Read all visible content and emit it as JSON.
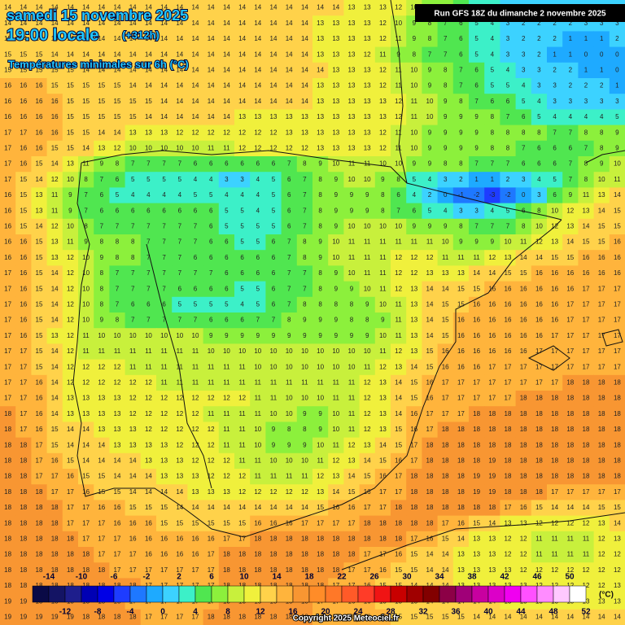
{
  "header": {
    "date": "samedi 15 novembre 2025",
    "time": "19:00 locale",
    "lead": "(+312h)",
    "subtitle": "Températures minimales sur 6h (°C)",
    "run": "Run GFS 18Z du dimanche 2 novembre 2025",
    "copyright": "Copyright 2025 Meteociel.fr"
  },
  "scale": {
    "unit": "(°C)",
    "values": [
      -14,
      -12,
      -10,
      -8,
      -6,
      -4,
      -2,
      0,
      2,
      4,
      6,
      8,
      10,
      12,
      14,
      16,
      18,
      20,
      22,
      24,
      26,
      28,
      30,
      32,
      34,
      36,
      38,
      40,
      42,
      44,
      46,
      48,
      50,
      52
    ],
    "colors": [
      "#0a0a46",
      "#141464",
      "#1e1e8c",
      "#0000b4",
      "#0000e6",
      "#1e3cff",
      "#1e78ff",
      "#1eaaff",
      "#3cd2ff",
      "#3cf0c8",
      "#50e650",
      "#8cf03c",
      "#c8f03c",
      "#f0f03c",
      "#ffd24a",
      "#ffb43c",
      "#f89632",
      "#ff8c28",
      "#ff7828",
      "#ff5a28",
      "#ff3c28",
      "#f01414",
      "#c80000",
      "#a00000",
      "#820000",
      "#8c0046",
      "#a00078",
      "#c800a0",
      "#dc00c8",
      "#f000f0",
      "#ff50ff",
      "#ff8cff",
      "#ffc8ff",
      "#ffffff"
    ]
  },
  "grid": [
    [
      14,
      14,
      14,
      14,
      14,
      14,
      14,
      14,
      14,
      14,
      14,
      14,
      14,
      14,
      14,
      14,
      14,
      14,
      14,
      14,
      14,
      14,
      13,
      13,
      13,
      12,
      10,
      9,
      8,
      7,
      5,
      4,
      3,
      2,
      2,
      2,
      2,
      3,
      3,
      3
    ],
    [
      14,
      14,
      14,
      14,
      14,
      14,
      14,
      14,
      14,
      14,
      14,
      14,
      14,
      14,
      14,
      14,
      14,
      14,
      14,
      14,
      13,
      13,
      13,
      13,
      12,
      10,
      9,
      8,
      7,
      6,
      5,
      4,
      3,
      2,
      2,
      2,
      2,
      3,
      3,
      3
    ],
    [
      15,
      14,
      14,
      14,
      14,
      14,
      14,
      14,
      14,
      14,
      14,
      14,
      14,
      14,
      14,
      14,
      14,
      14,
      14,
      14,
      13,
      13,
      13,
      13,
      12,
      11,
      9,
      8,
      7,
      6,
      5,
      4,
      3,
      2,
      2,
      2,
      1,
      1,
      1,
      2
    ],
    [
      15,
      15,
      15,
      14,
      14,
      14,
      14,
      14,
      14,
      14,
      14,
      14,
      14,
      14,
      14,
      14,
      14,
      14,
      14,
      14,
      13,
      13,
      13,
      12,
      11,
      9,
      8,
      7,
      7,
      6,
      5,
      4,
      3,
      3,
      2,
      1,
      1,
      0,
      0,
      0
    ],
    [
      15,
      15,
      15,
      15,
      15,
      14,
      14,
      14,
      14,
      14,
      14,
      14,
      14,
      14,
      14,
      14,
      14,
      14,
      14,
      14,
      14,
      13,
      13,
      13,
      12,
      11,
      10,
      9,
      8,
      7,
      6,
      5,
      4,
      3,
      3,
      2,
      2,
      1,
      1,
      0
    ],
    [
      16,
      16,
      16,
      15,
      15,
      15,
      15,
      15,
      14,
      14,
      14,
      14,
      14,
      14,
      14,
      14,
      14,
      14,
      14,
      14,
      13,
      13,
      13,
      13,
      12,
      11,
      10,
      9,
      8,
      7,
      6,
      5,
      5,
      4,
      3,
      3,
      2,
      2,
      2,
      1
    ],
    [
      16,
      16,
      16,
      16,
      15,
      15,
      15,
      15,
      15,
      15,
      14,
      14,
      14,
      14,
      14,
      14,
      14,
      14,
      14,
      14,
      13,
      13,
      13,
      13,
      13,
      12,
      11,
      10,
      9,
      8,
      7,
      6,
      6,
      5,
      4,
      3,
      3,
      3,
      3,
      3
    ],
    [
      16,
      16,
      16,
      16,
      15,
      15,
      15,
      15,
      15,
      14,
      14,
      14,
      14,
      14,
      14,
      13,
      13,
      13,
      13,
      13,
      13,
      13,
      13,
      13,
      13,
      12,
      11,
      10,
      9,
      9,
      9,
      8,
      7,
      6,
      5,
      4,
      4,
      4,
      4,
      5
    ],
    [
      17,
      17,
      16,
      16,
      15,
      15,
      14,
      14,
      13,
      13,
      13,
      12,
      12,
      12,
      12,
      12,
      12,
      12,
      13,
      13,
      13,
      13,
      13,
      13,
      12,
      11,
      10,
      9,
      9,
      9,
      9,
      8,
      8,
      8,
      8,
      7,
      7,
      8,
      8,
      9
    ],
    [
      17,
      16,
      16,
      15,
      15,
      14,
      13,
      12,
      10,
      10,
      10,
      10,
      10,
      11,
      11,
      12,
      12,
      12,
      12,
      12,
      13,
      13,
      13,
      13,
      12,
      11,
      10,
      9,
      9,
      9,
      9,
      8,
      8,
      7,
      6,
      6,
      6,
      7,
      8,
      9
    ],
    [
      17,
      16,
      15,
      14,
      13,
      11,
      9,
      8,
      7,
      7,
      7,
      7,
      6,
      6,
      6,
      6,
      6,
      6,
      7,
      8,
      9,
      10,
      11,
      11,
      10,
      10,
      9,
      9,
      8,
      8,
      7,
      7,
      7,
      6,
      6,
      6,
      7,
      8,
      9,
      10
    ],
    [
      17,
      15,
      14,
      12,
      10,
      8,
      7,
      6,
      5,
      5,
      5,
      5,
      4,
      4,
      3,
      3,
      4,
      5,
      6,
      7,
      8,
      9,
      10,
      10,
      9,
      8,
      5,
      4,
      3,
      2,
      1,
      1,
      2,
      3,
      4,
      5,
      7,
      8,
      10,
      11
    ],
    [
      16,
      15,
      13,
      11,
      9,
      7,
      6,
      5,
      4,
      4,
      4,
      4,
      5,
      5,
      4,
      4,
      4,
      5,
      6,
      7,
      8,
      9,
      9,
      9,
      8,
      6,
      4,
      2,
      0,
      -1,
      -2,
      -3,
      -2,
      0,
      3,
      6,
      9,
      11,
      13,
      14
    ],
    [
      16,
      15,
      13,
      11,
      9,
      7,
      6,
      6,
      6,
      6,
      6,
      6,
      6,
      6,
      5,
      5,
      4,
      5,
      6,
      7,
      8,
      9,
      9,
      9,
      8,
      7,
      6,
      5,
      4,
      3,
      3,
      4,
      5,
      6,
      8,
      10,
      12,
      13,
      14,
      15
    ],
    [
      16,
      15,
      14,
      12,
      10,
      8,
      7,
      7,
      7,
      7,
      7,
      7,
      7,
      6,
      5,
      5,
      5,
      5,
      6,
      7,
      8,
      9,
      10,
      10,
      10,
      10,
      9,
      9,
      9,
      8,
      7,
      7,
      7,
      8,
      10,
      12,
      13,
      14,
      15,
      15
    ],
    [
      16,
      16,
      15,
      13,
      11,
      9,
      8,
      8,
      8,
      7,
      7,
      7,
      7,
      6,
      6,
      5,
      5,
      6,
      7,
      8,
      9,
      10,
      11,
      11,
      11,
      11,
      11,
      11,
      10,
      9,
      9,
      9,
      10,
      11,
      12,
      13,
      14,
      15,
      15,
      16
    ],
    [
      16,
      16,
      15,
      13,
      12,
      10,
      9,
      8,
      8,
      7,
      7,
      7,
      6,
      6,
      6,
      6,
      6,
      6,
      7,
      8,
      9,
      10,
      11,
      11,
      11,
      12,
      12,
      12,
      11,
      11,
      11,
      12,
      13,
      14,
      14,
      15,
      15,
      16,
      16,
      16
    ],
    [
      17,
      16,
      15,
      14,
      12,
      10,
      8,
      7,
      7,
      7,
      7,
      7,
      7,
      7,
      6,
      6,
      6,
      6,
      7,
      7,
      8,
      9,
      10,
      11,
      11,
      12,
      12,
      13,
      13,
      13,
      14,
      14,
      15,
      15,
      16,
      16,
      16,
      16,
      16,
      16
    ],
    [
      17,
      16,
      15,
      14,
      12,
      10,
      8,
      7,
      7,
      7,
      7,
      6,
      6,
      6,
      6,
      5,
      5,
      6,
      7,
      7,
      8,
      9,
      9,
      10,
      11,
      12,
      13,
      14,
      14,
      15,
      15,
      16,
      16,
      16,
      16,
      16,
      16,
      17,
      17,
      17
    ],
    [
      17,
      16,
      15,
      14,
      12,
      10,
      8,
      7,
      6,
      6,
      6,
      5,
      5,
      5,
      5,
      4,
      5,
      6,
      7,
      8,
      8,
      8,
      8,
      9,
      10,
      11,
      13,
      14,
      15,
      15,
      16,
      16,
      16,
      16,
      16,
      16,
      17,
      17,
      17,
      17
    ],
    [
      17,
      16,
      15,
      14,
      12,
      10,
      9,
      8,
      7,
      7,
      7,
      7,
      7,
      6,
      6,
      6,
      7,
      7,
      8,
      9,
      9,
      9,
      8,
      8,
      9,
      11,
      13,
      14,
      15,
      16,
      16,
      16,
      16,
      16,
      16,
      16,
      17,
      17,
      17,
      17
    ],
    [
      17,
      16,
      15,
      13,
      12,
      11,
      10,
      10,
      10,
      10,
      10,
      10,
      10,
      9,
      9,
      9,
      9,
      9,
      9,
      9,
      9,
      9,
      9,
      9,
      10,
      11,
      13,
      14,
      15,
      16,
      16,
      16,
      16,
      16,
      16,
      17,
      17,
      17,
      17,
      17
    ],
    [
      17,
      17,
      15,
      14,
      12,
      11,
      11,
      11,
      11,
      11,
      11,
      11,
      11,
      10,
      10,
      10,
      10,
      10,
      10,
      10,
      10,
      10,
      10,
      10,
      11,
      12,
      13,
      15,
      16,
      16,
      16,
      16,
      16,
      16,
      17,
      17,
      17,
      17,
      17,
      17
    ],
    [
      17,
      17,
      15,
      14,
      12,
      12,
      12,
      12,
      11,
      11,
      11,
      11,
      11,
      11,
      11,
      11,
      10,
      10,
      10,
      10,
      10,
      10,
      10,
      11,
      12,
      13,
      14,
      15,
      16,
      16,
      16,
      17,
      17,
      17,
      17,
      17,
      17,
      17,
      17,
      17
    ],
    [
      17,
      17,
      16,
      14,
      12,
      12,
      12,
      12,
      12,
      12,
      11,
      11,
      11,
      11,
      11,
      11,
      11,
      11,
      11,
      11,
      11,
      11,
      11,
      12,
      13,
      14,
      15,
      16,
      17,
      17,
      17,
      17,
      17,
      17,
      17,
      17,
      18,
      18,
      18,
      18
    ],
    [
      17,
      17,
      16,
      14,
      13,
      13,
      13,
      13,
      12,
      12,
      12,
      12,
      12,
      12,
      12,
      12,
      11,
      11,
      10,
      10,
      10,
      11,
      11,
      12,
      13,
      14,
      15,
      16,
      17,
      17,
      17,
      17,
      17,
      18,
      18,
      18,
      18,
      18,
      18,
      18
    ],
    [
      18,
      17,
      16,
      14,
      13,
      13,
      13,
      13,
      12,
      12,
      12,
      12,
      12,
      11,
      11,
      11,
      11,
      10,
      10,
      9,
      9,
      10,
      11,
      12,
      13,
      14,
      16,
      17,
      17,
      17,
      18,
      18,
      18,
      18,
      18,
      18,
      18,
      18,
      18,
      18
    ],
    [
      18,
      17,
      16,
      15,
      14,
      14,
      13,
      13,
      13,
      12,
      12,
      12,
      12,
      12,
      11,
      11,
      10,
      9,
      8,
      8,
      9,
      10,
      11,
      12,
      13,
      15,
      16,
      17,
      18,
      18,
      18,
      18,
      18,
      18,
      18,
      18,
      18,
      18,
      18,
      18
    ],
    [
      18,
      18,
      17,
      15,
      14,
      14,
      14,
      13,
      13,
      13,
      13,
      12,
      12,
      12,
      11,
      11,
      10,
      9,
      9,
      9,
      10,
      11,
      12,
      13,
      14,
      15,
      17,
      18,
      18,
      18,
      18,
      18,
      18,
      18,
      18,
      18,
      18,
      18,
      18,
      18
    ],
    [
      18,
      18,
      17,
      16,
      15,
      14,
      14,
      14,
      14,
      13,
      13,
      13,
      12,
      12,
      12,
      11,
      11,
      10,
      10,
      10,
      11,
      12,
      13,
      14,
      15,
      16,
      17,
      18,
      18,
      18,
      18,
      19,
      18,
      18,
      18,
      18,
      18,
      18,
      18,
      18
    ],
    [
      18,
      18,
      17,
      17,
      16,
      15,
      15,
      14,
      14,
      14,
      13,
      13,
      13,
      12,
      12,
      12,
      11,
      11,
      11,
      11,
      12,
      13,
      14,
      15,
      16,
      17,
      18,
      18,
      18,
      18,
      19,
      19,
      18,
      18,
      18,
      18,
      18,
      18,
      18,
      18
    ],
    [
      18,
      18,
      18,
      17,
      17,
      16,
      15,
      15,
      14,
      14,
      14,
      14,
      13,
      13,
      13,
      12,
      12,
      12,
      12,
      12,
      13,
      14,
      15,
      16,
      17,
      17,
      18,
      18,
      18,
      18,
      19,
      19,
      18,
      18,
      18,
      17,
      17,
      17,
      17,
      17
    ],
    [
      18,
      18,
      18,
      18,
      17,
      17,
      16,
      16,
      15,
      15,
      15,
      14,
      14,
      14,
      14,
      14,
      14,
      14,
      14,
      14,
      15,
      16,
      16,
      17,
      17,
      18,
      18,
      18,
      18,
      18,
      18,
      18,
      17,
      16,
      15,
      14,
      14,
      14,
      15,
      15
    ],
    [
      18,
      18,
      18,
      18,
      17,
      17,
      17,
      16,
      16,
      16,
      15,
      15,
      15,
      15,
      15,
      15,
      16,
      16,
      16,
      17,
      17,
      17,
      17,
      18,
      18,
      18,
      18,
      18,
      17,
      16,
      15,
      14,
      13,
      13,
      12,
      12,
      12,
      12,
      13,
      14
    ],
    [
      18,
      18,
      18,
      18,
      18,
      17,
      17,
      17,
      16,
      16,
      16,
      16,
      16,
      16,
      17,
      17,
      18,
      18,
      18,
      18,
      18,
      18,
      18,
      18,
      18,
      18,
      17,
      16,
      15,
      14,
      13,
      13,
      12,
      12,
      11,
      11,
      11,
      11,
      12,
      13
    ],
    [
      18,
      18,
      18,
      18,
      18,
      18,
      17,
      17,
      17,
      16,
      16,
      16,
      16,
      17,
      18,
      18,
      18,
      18,
      18,
      18,
      18,
      18,
      18,
      17,
      17,
      16,
      15,
      14,
      14,
      13,
      13,
      13,
      12,
      12,
      11,
      11,
      11,
      11,
      12,
      12
    ],
    [
      18,
      18,
      18,
      18,
      18,
      18,
      18,
      17,
      17,
      17,
      17,
      17,
      17,
      17,
      18,
      18,
      18,
      18,
      18,
      18,
      18,
      18,
      17,
      17,
      16,
      15,
      15,
      14,
      14,
      13,
      13,
      13,
      13,
      12,
      12,
      12,
      12,
      12,
      12,
      12
    ],
    [
      18,
      18,
      18,
      18,
      18,
      18,
      18,
      18,
      18,
      17,
      17,
      17,
      17,
      17,
      18,
      18,
      18,
      18,
      18,
      18,
      18,
      17,
      17,
      16,
      15,
      15,
      14,
      14,
      14,
      13,
      13,
      13,
      13,
      13,
      12,
      12,
      12,
      12,
      12,
      13
    ],
    [
      19,
      19,
      18,
      18,
      18,
      18,
      18,
      18,
      17,
      17,
      17,
      17,
      17,
      17,
      18,
      18,
      18,
      18,
      18,
      18,
      17,
      17,
      16,
      16,
      15,
      15,
      15,
      14,
      14,
      14,
      14,
      14,
      13,
      13,
      13,
      13,
      13,
      13,
      13,
      13
    ],
    [
      19,
      19,
      19,
      19,
      19,
      18,
      18,
      18,
      18,
      17,
      17,
      17,
      17,
      18,
      18,
      18,
      18,
      18,
      18,
      18,
      17,
      17,
      16,
      16,
      16,
      15,
      15,
      15,
      15,
      15,
      14,
      14,
      14,
      14,
      14,
      14,
      14,
      14,
      14,
      14
    ]
  ]
}
